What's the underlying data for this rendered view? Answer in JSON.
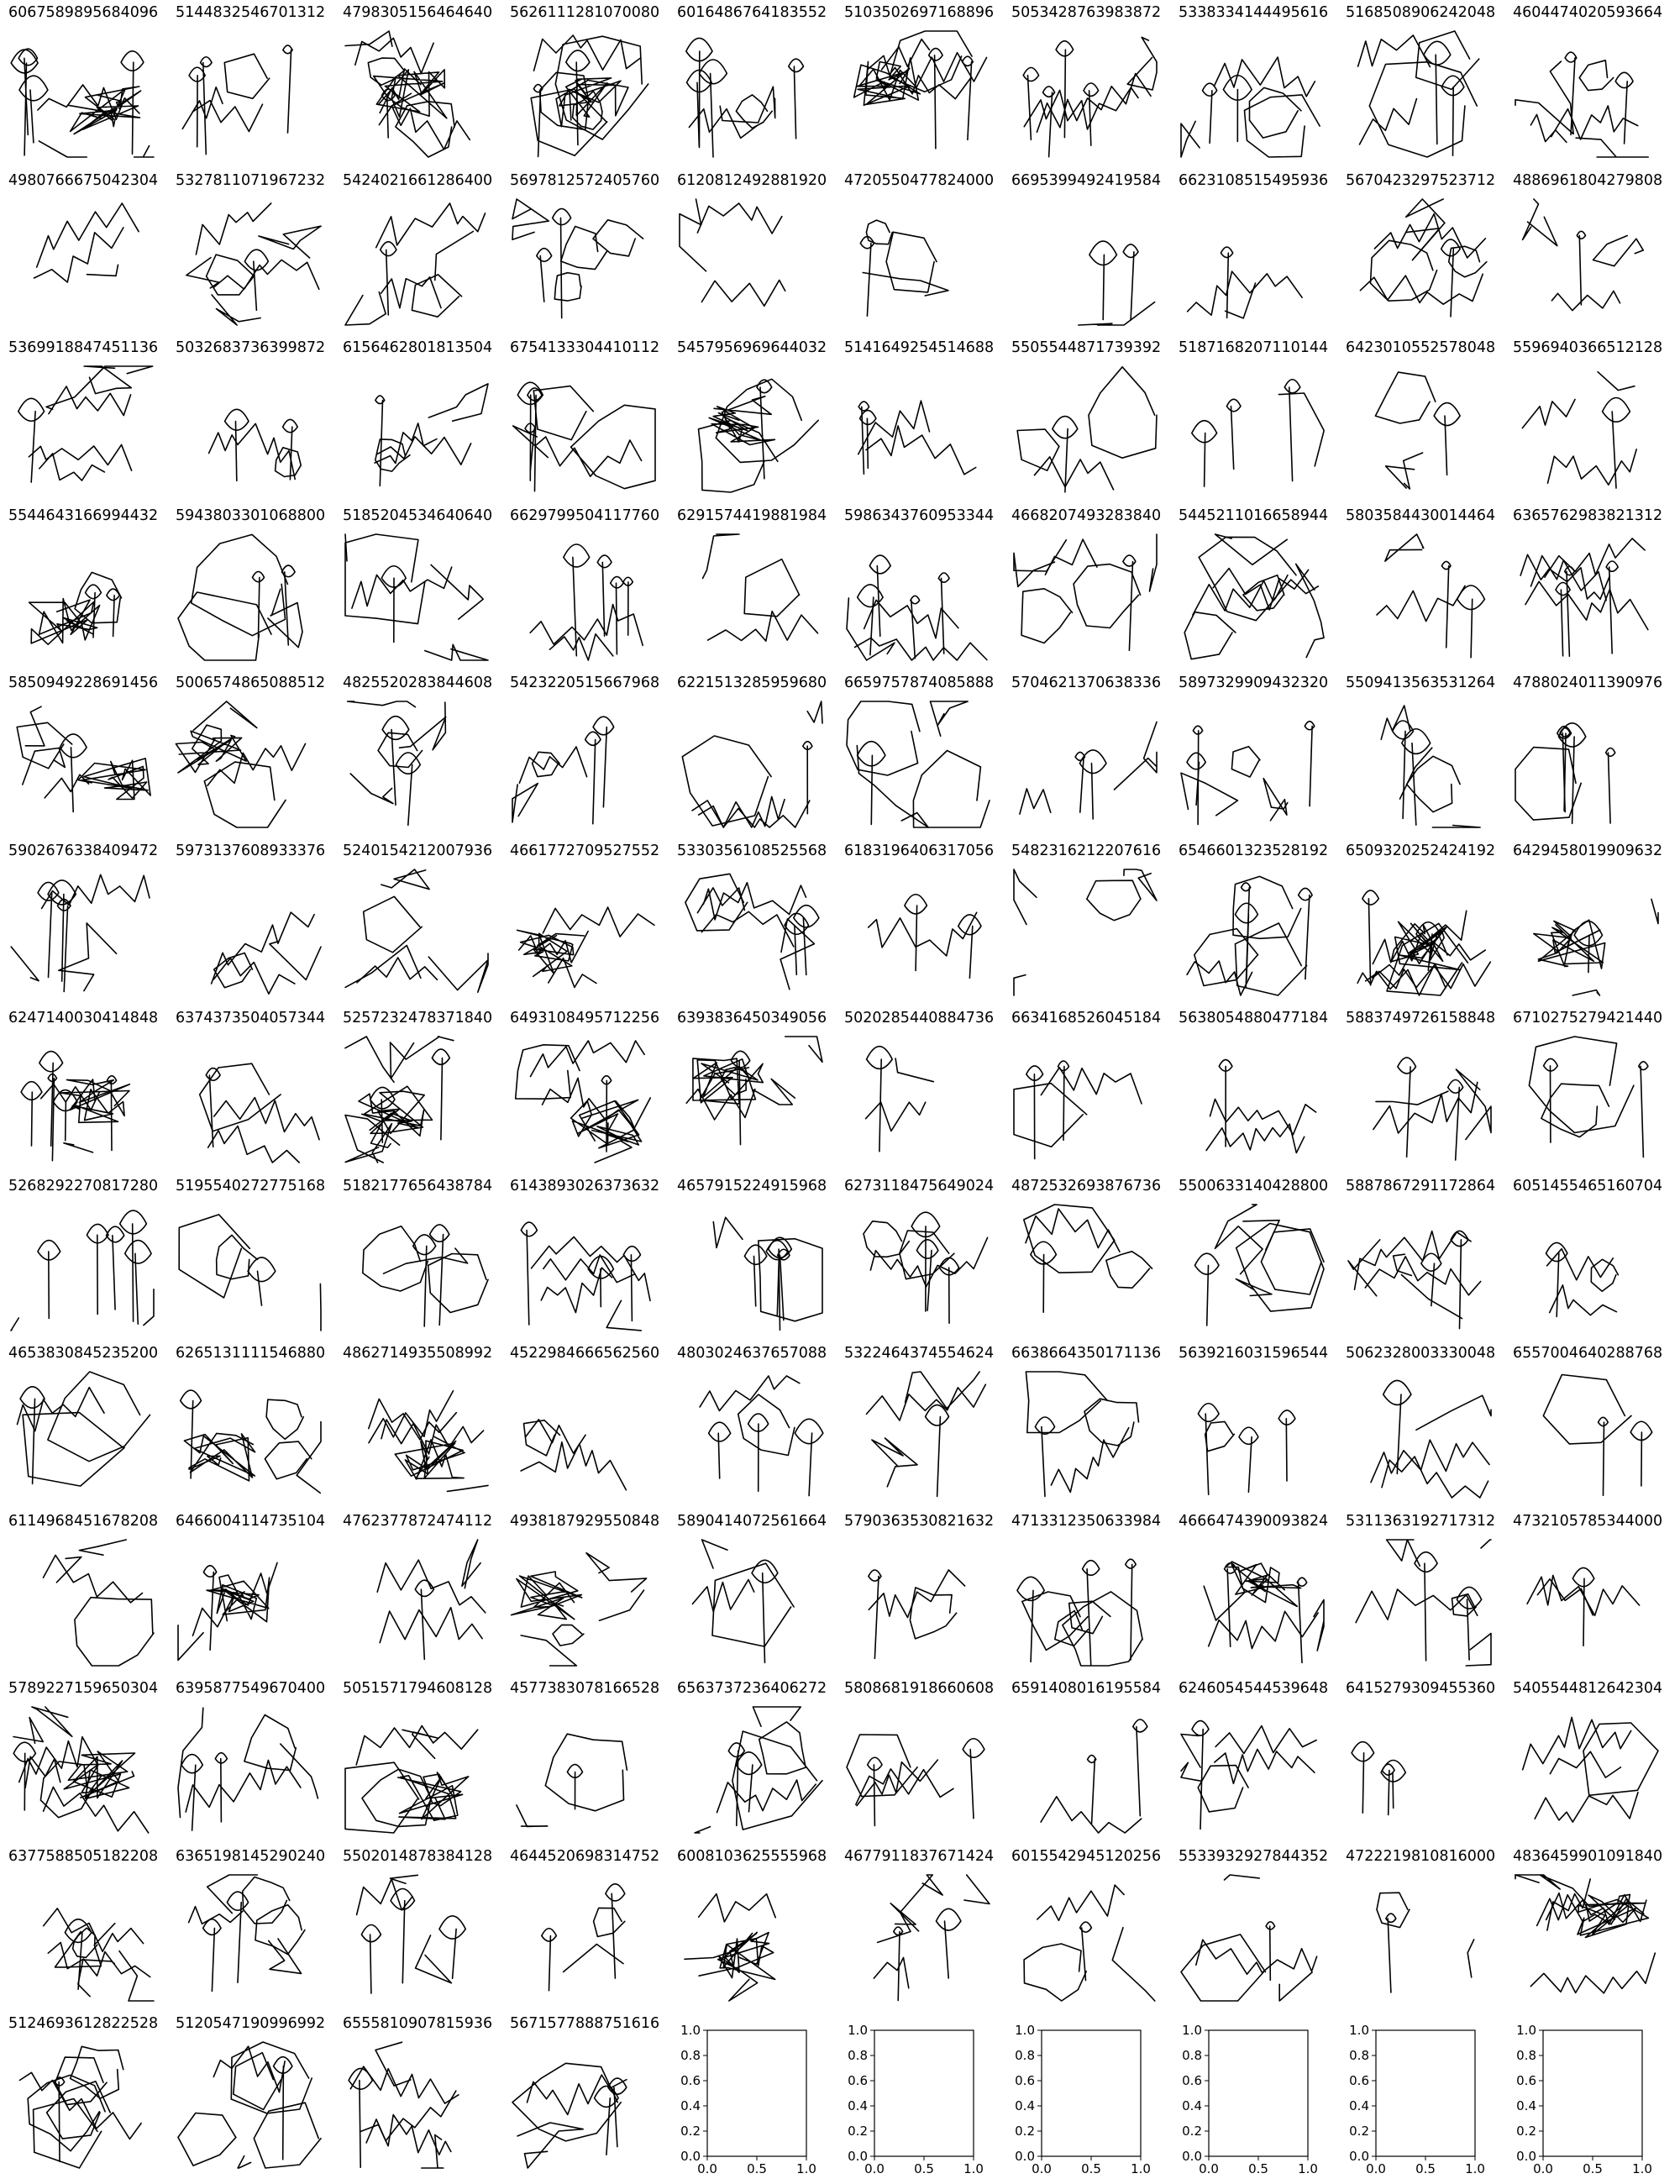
{
  "sketches": [
    {
      "id": "6067589895684096",
      "icon": "grass-fence-sketch"
    },
    {
      "id": "5144832546701312",
      "icon": "house-grass-sketch"
    },
    {
      "id": "4798305156464640",
      "icon": "shaded-blob-sketch"
    },
    {
      "id": "5626111281070080",
      "icon": "grass-stalks-sketch"
    },
    {
      "id": "6016486764183552",
      "icon": "tree-branch-sketch"
    },
    {
      "id": "5103502697168896",
      "icon": "umbrella-sketch"
    },
    {
      "id": "5053428763983872",
      "icon": "flowers-in-circle-sketch"
    },
    {
      "id": "5338334144495616",
      "icon": "zigzag-scribble-sketch"
    },
    {
      "id": "5168508906242048",
      "icon": "zigzag-flower-sketch"
    },
    {
      "id": "4604474020593664",
      "icon": "flowers-in-box-sketch"
    },
    {
      "id": "4980766675042304",
      "icon": "flower-pot-sketch"
    },
    {
      "id": "5327811071967232",
      "icon": "sun-face-sketch"
    },
    {
      "id": "5424021661286400",
      "icon": "flowers-doodle-sketch"
    },
    {
      "id": "5697812572405760",
      "icon": "abstract-shapes-sketch"
    },
    {
      "id": "6120812492881920",
      "icon": "tulip-row-sketch"
    },
    {
      "id": "4720550477824000",
      "icon": "rounded-box-sketch"
    },
    {
      "id": "6695399492419584",
      "icon": "zigzag-lines-sketch"
    },
    {
      "id": "6623108515495936",
      "icon": "diagonal-path-sketch"
    },
    {
      "id": "5670423297523712",
      "icon": "tree-flowers-sketch"
    },
    {
      "id": "4886961804279808",
      "icon": "tree-box-sketch"
    },
    {
      "id": "5369918847451136",
      "icon": "basket-sketch"
    },
    {
      "id": "5032683736399872",
      "icon": "face-waves-sketch"
    },
    {
      "id": "6156462801813504",
      "icon": "dense-scribble-sketch"
    },
    {
      "id": "6754133304410112",
      "icon": "branches-sketch"
    },
    {
      "id": "5457956969644032",
      "icon": "leaf-shapes-sketch"
    },
    {
      "id": "5141649254514688",
      "icon": "tangled-scribble-sketch"
    },
    {
      "id": "5505544871739392",
      "icon": "vertical-lines-sketch"
    },
    {
      "id": "5187168207110144",
      "icon": "building-sketch"
    },
    {
      "id": "6423010552578048",
      "icon": "box-scribble-sketch"
    },
    {
      "id": "5596940366512128",
      "icon": "trees-oval-sketch"
    },
    {
      "id": "5544643166994432",
      "icon": "framed-shape-sketch"
    },
    {
      "id": "5943803301068800",
      "icon": "loop-scribble-sketch"
    },
    {
      "id": "5185204534640640",
      "icon": "tree-sketch"
    },
    {
      "id": "6629799504117760",
      "icon": "pot-bush-sketch"
    },
    {
      "id": "6291574419881984",
      "icon": "grass-arches-sketch"
    },
    {
      "id": "5986343760953344",
      "icon": "tree-table-sketch"
    },
    {
      "id": "4668207493283840",
      "icon": "plant-ramp-sketch"
    },
    {
      "id": "5445211016658944",
      "icon": "tree-cloud-sketch"
    },
    {
      "id": "5803584430014464",
      "icon": "dense-grass-sketch"
    },
    {
      "id": "6365762983821312",
      "icon": "flower-pot-2-sketch"
    },
    {
      "id": "5850949228691456",
      "icon": "hat-shape-sketch"
    },
    {
      "id": "5006574865088512",
      "icon": "cross-loop-sketch"
    },
    {
      "id": "4825520283844608",
      "icon": "arches-trees-sketch"
    },
    {
      "id": "5423220515667968",
      "icon": "fountain-flowers-sketch"
    },
    {
      "id": "6221513285959680",
      "icon": "river-path-sketch"
    },
    {
      "id": "6659757874085888",
      "icon": "grass-flower-sketch"
    },
    {
      "id": "5704621370638336",
      "icon": "leaf-stem-sketch"
    },
    {
      "id": "5897329909432320",
      "icon": "framed-plants-sketch"
    },
    {
      "id": "5509413563531264",
      "icon": "tall-grass-sketch"
    },
    {
      "id": "4788024011390976",
      "icon": "skyline-sketch"
    },
    {
      "id": "5902676338409472",
      "icon": "rounded-blob-sketch"
    },
    {
      "id": "5973137608933376",
      "icon": "flower-slope-sketch"
    },
    {
      "id": "5240154212007936",
      "icon": "grass-tuft-sketch"
    },
    {
      "id": "4661772709527552",
      "icon": "heart-tree-sketch"
    },
    {
      "id": "5330356108525568",
      "icon": "snail-sketch"
    },
    {
      "id": "6183196406317056",
      "icon": "tree-flowers-2-sketch"
    },
    {
      "id": "5482316212207616",
      "icon": "plant-stairs-sketch"
    },
    {
      "id": "6546601323528192",
      "icon": "curved-lines-sketch"
    },
    {
      "id": "6509320252424192",
      "icon": "two-plants-sketch"
    },
    {
      "id": "6429458019909632",
      "icon": "flower-zigzag-sketch"
    },
    {
      "id": "6247140030414848",
      "icon": "mountain-lines-sketch"
    },
    {
      "id": "6374373504057344",
      "icon": "skyline-2-sketch"
    },
    {
      "id": "5257232478371840",
      "icon": "hat-figure-sketch"
    },
    {
      "id": "6493108495712256",
      "icon": "seaweed-sketch"
    },
    {
      "id": "6393836450349056",
      "icon": "two-flowers-sketch"
    },
    {
      "id": "5020285440884736",
      "icon": "hook-shape-sketch"
    },
    {
      "id": "6634168526045184",
      "icon": "spiky-plants-sketch"
    },
    {
      "id": "5638054880477184",
      "icon": "arched-grass-sketch"
    },
    {
      "id": "5883749726158848",
      "icon": "line-cluster-sketch"
    },
    {
      "id": "6710275279421440",
      "icon": "plants-row-sketch"
    },
    {
      "id": "5268292270817280",
      "icon": "tree-scribble-sketch"
    },
    {
      "id": "5195540272775168",
      "icon": "hatched-block-sketch"
    },
    {
      "id": "5182177656438784",
      "icon": "stick-figure-sketch"
    },
    {
      "id": "6143893026373632",
      "icon": "flower-between-lines-sketch"
    },
    {
      "id": "4657915224915968",
      "icon": "zigzag-kite-sketch"
    },
    {
      "id": "6273118475649024",
      "icon": "flower-stem-grass-sketch"
    },
    {
      "id": "4872532693876736",
      "icon": "towers-sketch"
    },
    {
      "id": "5500633140428800",
      "icon": "tree-island-sketch"
    },
    {
      "id": "5887867291172864",
      "icon": "tree-fence-sketch"
    },
    {
      "id": "6051455465160704",
      "icon": "circle-scribble-sketch"
    },
    {
      "id": "4653830845235200",
      "icon": "flower-hills-sketch"
    },
    {
      "id": "6265131111546880",
      "icon": "tower-step-sketch"
    },
    {
      "id": "4862714935508992",
      "icon": "arc-sketch"
    },
    {
      "id": "4522984666562560",
      "icon": "grass-blob-sketch"
    },
    {
      "id": "4803024637657088",
      "icon": "mushroom-tree-sketch"
    },
    {
      "id": "5322464374554624",
      "icon": "reeds-sketch"
    },
    {
      "id": "6638664350171136",
      "icon": "flowers-frame-sketch"
    },
    {
      "id": "5639216031596544",
      "icon": "kite-shape-sketch"
    },
    {
      "id": "5062328003330048",
      "icon": "tree-scribble-2-sketch"
    },
    {
      "id": "6557004640288768",
      "icon": "plants-box-sketch"
    },
    {
      "id": "6114968451678208",
      "icon": "circle-plants-sketch"
    },
    {
      "id": "6466004114735104",
      "icon": "zigzag-spikes-sketch"
    },
    {
      "id": "4762377872474112",
      "icon": "zigzag-diagonal-sketch"
    },
    {
      "id": "4938187929550848",
      "icon": "pot-plants-sketch"
    },
    {
      "id": "5890414072561664",
      "icon": "figure-hat-sketch"
    },
    {
      "id": "5790363530821632",
      "icon": "crown-plants-sketch"
    },
    {
      "id": "4713312350633984",
      "icon": "diagonal-line-sketch"
    },
    {
      "id": "4666474390093824",
      "icon": "plant-blob-sketch"
    },
    {
      "id": "5311363192717312",
      "icon": "branching-plant-sketch"
    },
    {
      "id": "4732105785344000",
      "icon": "quadrilateral-sketch"
    },
    {
      "id": "5789227159650304",
      "icon": "framed-face-sketch"
    },
    {
      "id": "6395877549670400",
      "icon": "hanging-plants-sketch"
    },
    {
      "id": "5051571794608128",
      "icon": "house-flowers-sketch"
    },
    {
      "id": "4577383078166528",
      "icon": "grass-layers-sketch"
    },
    {
      "id": "6563737236406272",
      "icon": "slope-sketch"
    },
    {
      "id": "5808681918660608",
      "icon": "plant-branch-sketch"
    },
    {
      "id": "6591408016195584",
      "icon": "hill-plants-sketch"
    },
    {
      "id": "6246054544539648",
      "icon": "box-plants-sketch"
    },
    {
      "id": "6415279309455360",
      "icon": "vase-shape-sketch"
    },
    {
      "id": "5405544812642304",
      "icon": "trees-stand-sketch"
    },
    {
      "id": "6377588505182208",
      "icon": "tree-flowers-3-sketch"
    },
    {
      "id": "6365198145290240",
      "icon": "plant-tent-sketch"
    },
    {
      "id": "5502014878384128",
      "icon": "leaf-cluster-sketch"
    },
    {
      "id": "4644520698314752",
      "icon": "bush-cluster-sketch"
    },
    {
      "id": "6008103625555968",
      "icon": "plant-scribble-base-sketch"
    },
    {
      "id": "4677911837671424",
      "icon": "arch-loop-sketch"
    },
    {
      "id": "6015542945120256",
      "icon": "flower-scribble-base-sketch"
    },
    {
      "id": "5533932927844352",
      "icon": "plants-in-box-sketch"
    },
    {
      "id": "4722219810816000",
      "icon": "tree-ball-sketch"
    },
    {
      "id": "4836459901091840",
      "icon": "reeds-dashes-sketch"
    },
    {
      "id": "5124693612822528",
      "icon": "big-flower-sketch"
    },
    {
      "id": "5120547190996992",
      "icon": "hills-outline-sketch"
    },
    {
      "id": "6555810907815936",
      "icon": "plants-cluster-sketch"
    },
    {
      "id": "5671577888751616",
      "icon": "tent-scribble-sketch"
    }
  ],
  "empty_axes": {
    "count": 6,
    "ticks": [
      "0.0",
      "0.2",
      "0.4",
      "0.6",
      "0.8",
      "1.0"
    ]
  }
}
